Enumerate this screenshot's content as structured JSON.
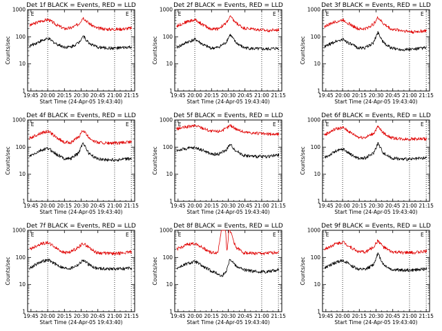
{
  "figure": {
    "ylabel": "Counts/sec",
    "xlabel": "Start Time (24-Apr-05 19:43:40)",
    "y_ticks": [
      "1",
      "10",
      "100",
      "1000"
    ],
    "x_ticks_a": [
      "19:45",
      "20:00",
      "20:15",
      "20:30",
      "20:45",
      "21:00",
      "21:15"
    ],
    "x_ticks_b": [
      "19:45",
      "20:00",
      "20:15",
      "20:30",
      "20:45",
      "21:00",
      "21:15"
    ],
    "marker_letter": "E"
  },
  "colors": {
    "events": "#000000",
    "lld": "#e00000",
    "axes": "#000000"
  },
  "chart_data": [
    {
      "type": "line",
      "title": "Det 1f BLACK = Events, RED = LLD",
      "xlim_min": [
        -1.7,
        94.3
      ],
      "ylim": [
        1,
        1000
      ],
      "log_y": true,
      "dotted_x": [
        16.3,
        76.3,
        91.3
      ],
      "e_x": [
        0,
        85
      ],
      "xticks": "a",
      "series": [
        {
          "key": "lld",
          "x_min": [
            0,
            10,
            17,
            24,
            31,
            37,
            44,
            48,
            53,
            60,
            70,
            80,
            92
          ],
          "values": [
            260,
            380,
            430,
            280,
            200,
            210,
            290,
            520,
            320,
            210,
            190,
            190,
            210
          ]
        },
        {
          "key": "events",
          "x_min": [
            0,
            10,
            17,
            24,
            31,
            37,
            44,
            48,
            53,
            60,
            70,
            80,
            92
          ],
          "values": [
            45,
            70,
            85,
            55,
            42,
            42,
            60,
            110,
            60,
            42,
            38,
            38,
            42
          ]
        }
      ]
    },
    {
      "type": "line",
      "title": "Det 2f BLACK = Events, RED = LLD",
      "xlim_min": [
        -1.7,
        94.3
      ],
      "ylim": [
        1,
        1000
      ],
      "log_y": true,
      "dotted_x": [
        16.3,
        76.3,
        91.3
      ],
      "e_x": [
        0,
        85
      ],
      "xticks": "a",
      "series": [
        {
          "key": "lld",
          "x_min": [
            0,
            10,
            17,
            24,
            31,
            37,
            44,
            48,
            53,
            60,
            70,
            80,
            92
          ],
          "values": [
            250,
            370,
            420,
            270,
            190,
            200,
            300,
            560,
            330,
            210,
            190,
            170,
            180
          ]
        },
        {
          "key": "events",
          "x_min": [
            0,
            10,
            17,
            24,
            31,
            37,
            44,
            48,
            53,
            60,
            70,
            80,
            92
          ],
          "values": [
            40,
            65,
            80,
            50,
            38,
            40,
            60,
            120,
            62,
            40,
            36,
            35,
            38
          ]
        }
      ]
    },
    {
      "type": "line",
      "title": "Det 3f BLACK = Events, RED = LLD",
      "xlim_min": [
        -1.7,
        94.3
      ],
      "ylim": [
        1,
        1000
      ],
      "log_y": true,
      "dotted_x": [
        16.3,
        76.3,
        91.3
      ],
      "e_x": [
        0,
        85
      ],
      "xticks": "b",
      "series": [
        {
          "key": "lld",
          "x_min": [
            0,
            10,
            17,
            24,
            31,
            37,
            44,
            48,
            53,
            60,
            70,
            80,
            92
          ],
          "values": [
            240,
            360,
            420,
            270,
            190,
            200,
            290,
            520,
            300,
            190,
            170,
            150,
            170
          ]
        },
        {
          "key": "events",
          "x_min": [
            0,
            10,
            17,
            24,
            31,
            37,
            44,
            48,
            53,
            60,
            70,
            80,
            92
          ],
          "values": [
            42,
            68,
            80,
            52,
            38,
            40,
            60,
            150,
            60,
            38,
            34,
            35,
            40
          ]
        }
      ]
    },
    {
      "type": "line",
      "title": "Det 4f BLACK = Events, RED = LLD",
      "xlim_min": [
        -1.7,
        94.3
      ],
      "ylim": [
        1,
        1000
      ],
      "log_y": true,
      "dotted_x": [
        16.3,
        76.3,
        91.3
      ],
      "e_x": [
        0,
        85
      ],
      "xticks": "a",
      "series": [
        {
          "key": "lld",
          "x_min": [
            0,
            10,
            17,
            24,
            31,
            37,
            44,
            48,
            53,
            60,
            70,
            80,
            92
          ],
          "values": [
            210,
            330,
            380,
            230,
            150,
            150,
            230,
            420,
            230,
            150,
            140,
            140,
            160
          ]
        },
        {
          "key": "events",
          "x_min": [
            0,
            10,
            17,
            24,
            31,
            37,
            44,
            48,
            53,
            60,
            70,
            80,
            92
          ],
          "values": [
            45,
            75,
            90,
            55,
            38,
            38,
            60,
            150,
            60,
            38,
            34,
            34,
            38
          ]
        }
      ]
    },
    {
      "type": "line",
      "title": "Det 5f BLACK = Events, RED = LLD",
      "xlim_min": [
        -1.7,
        94.3
      ],
      "ylim": [
        1,
        1000
      ],
      "log_y": true,
      "dotted_x": [
        16.3,
        76.3,
        91.3
      ],
      "e_x": [
        0,
        85
      ],
      "xticks": "b",
      "series": [
        {
          "key": "lld",
          "x_min": [
            0,
            10,
            17,
            24,
            31,
            37,
            44,
            48,
            53,
            60,
            70,
            80,
            92
          ],
          "values": [
            470,
            560,
            620,
            500,
            380,
            380,
            460,
            640,
            480,
            360,
            330,
            300,
            300
          ]
        },
        {
          "key": "events",
          "x_min": [
            0,
            10,
            17,
            24,
            31,
            37,
            44,
            48,
            53,
            60,
            70,
            80,
            92
          ],
          "values": [
            75,
            90,
            95,
            75,
            55,
            55,
            75,
            125,
            75,
            50,
            45,
            45,
            50
          ]
        }
      ]
    },
    {
      "type": "line",
      "title": "Det 6f BLACK = Events, RED = LLD",
      "xlim_min": [
        -1.7,
        94.3
      ],
      "ylim": [
        1,
        1000
      ],
      "log_y": true,
      "dotted_x": [
        16.3,
        76.3,
        91.3
      ],
      "e_x": [
        0,
        85
      ],
      "xticks": "b",
      "series": [
        {
          "key": "lld",
          "x_min": [
            0,
            10,
            17,
            24,
            31,
            37,
            44,
            48,
            53,
            60,
            70,
            80,
            92
          ],
          "values": [
            280,
            470,
            520,
            330,
            230,
            230,
            320,
            560,
            330,
            220,
            200,
            200,
            200
          ]
        },
        {
          "key": "events",
          "x_min": [
            0,
            10,
            17,
            24,
            31,
            37,
            44,
            48,
            53,
            60,
            70,
            80,
            92
          ],
          "values": [
            40,
            70,
            85,
            52,
            38,
            40,
            60,
            140,
            60,
            40,
            36,
            36,
            40
          ]
        }
      ]
    },
    {
      "type": "line",
      "title": "Det 7f BLACK = Events, RED = LLD",
      "xlim_min": [
        -1.7,
        94.3
      ],
      "ylim": [
        1,
        1000
      ],
      "log_y": true,
      "dotted_x": [
        16.3,
        76.3,
        91.3
      ],
      "e_x": [
        0,
        85
      ],
      "xticks": "a",
      "series": [
        {
          "key": "lld",
          "x_min": [
            0,
            10,
            17,
            24,
            31,
            37,
            44,
            48,
            53,
            60,
            70,
            80,
            92
          ],
          "values": [
            200,
            320,
            350,
            220,
            150,
            160,
            240,
            330,
            240,
            150,
            140,
            140,
            160
          ]
        },
        {
          "key": "events",
          "x_min": [
            0,
            10,
            17,
            24,
            31,
            37,
            44,
            48,
            53,
            60,
            70,
            80,
            92
          ],
          "values": [
            40,
            70,
            80,
            55,
            40,
            40,
            55,
            80,
            55,
            40,
            38,
            38,
            40
          ]
        }
      ]
    },
    {
      "type": "line",
      "title": "Det 8f BLACK = Events, RED = LLD",
      "xlim_min": [
        -1.7,
        94.3
      ],
      "ylim": [
        1,
        1000
      ],
      "log_y": true,
      "dotted_x": [
        16.3,
        76.3,
        91.3
      ],
      "e_x": [
        0,
        85
      ],
      "xticks": "b",
      "series": [
        {
          "key": "lld",
          "x_min": [
            0,
            10,
            17,
            24,
            31,
            37,
            40,
            41,
            44,
            45,
            47,
            48,
            53,
            60,
            70,
            80,
            92
          ],
          "values": [
            200,
            300,
            330,
            220,
            150,
            150,
            1000,
            1000,
            1000,
            150,
            1000,
            1000,
            240,
            150,
            140,
            140,
            160
          ]
        },
        {
          "key": "events",
          "x_min": [
            0,
            10,
            17,
            24,
            31,
            37,
            40,
            44,
            48,
            53,
            60,
            70,
            80,
            92
          ],
          "values": [
            40,
            60,
            70,
            45,
            32,
            25,
            20,
            28,
            90,
            50,
            35,
            30,
            30,
            35
          ]
        }
      ]
    },
    {
      "type": "line",
      "title": "Det 9f BLACK = Events, RED = LLD",
      "xlim_min": [
        -1.7,
        94.3
      ],
      "ylim": [
        1,
        1000
      ],
      "log_y": true,
      "dotted_x": [
        16.3,
        76.3,
        91.3
      ],
      "e_x": [
        0,
        85
      ],
      "xticks": "b",
      "series": [
        {
          "key": "lld",
          "x_min": [
            0,
            10,
            17,
            24,
            31,
            37,
            44,
            48,
            53,
            60,
            70,
            80,
            92
          ],
          "values": [
            200,
            320,
            370,
            230,
            160,
            160,
            240,
            420,
            240,
            160,
            150,
            150,
            170
          ]
        },
        {
          "key": "events",
          "x_min": [
            0,
            10,
            17,
            24,
            31,
            37,
            44,
            48,
            53,
            60,
            70,
            80,
            92
          ],
          "values": [
            40,
            65,
            78,
            50,
            36,
            36,
            55,
            140,
            55,
            36,
            34,
            34,
            38
          ]
        }
      ]
    }
  ]
}
